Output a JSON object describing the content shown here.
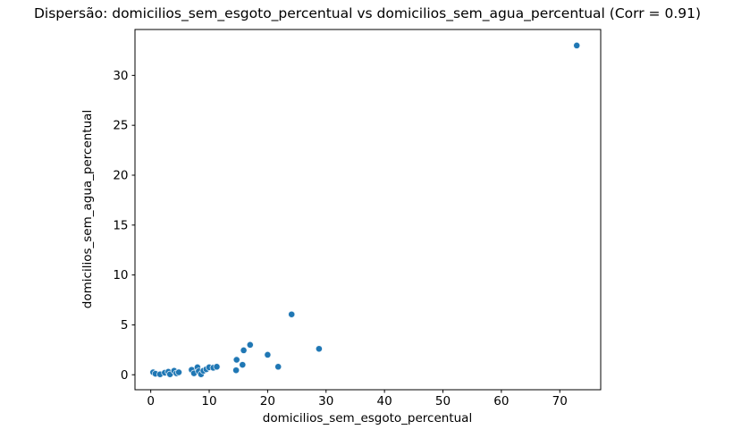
{
  "figure": {
    "background_color": "#ffffff",
    "text_color": "#000000",
    "frame_color": "#000000"
  },
  "chart_data": {
    "type": "scatter",
    "title": "Dispersão: domicilios_sem_esgoto_percentual vs domicilios_sem_agua_percentual (Corr = 0.91)",
    "xlabel": "domicilios_sem_esgoto_percentual",
    "ylabel": "domicilios_sem_agua_percentual",
    "correlation": 0.91,
    "marker_color": "#1f77b4",
    "marker_edge_color": "#e8f0f7",
    "grid": false,
    "legend_position": "none",
    "xlim": [
      -2.7,
      77.0
    ],
    "ylim": [
      -1.5,
      34.6
    ],
    "x_ticks": [
      0,
      10,
      20,
      30,
      40,
      50,
      60,
      70
    ],
    "y_ticks": [
      0,
      5,
      10,
      15,
      20,
      25,
      30
    ],
    "points": [
      [
        0.4,
        0.25
      ],
      [
        0.8,
        0.1
      ],
      [
        1.6,
        0.05
      ],
      [
        2.4,
        0.2
      ],
      [
        3.0,
        0.3
      ],
      [
        3.3,
        0.05
      ],
      [
        4.0,
        0.4
      ],
      [
        4.4,
        0.15
      ],
      [
        4.8,
        0.25
      ],
      [
        7.0,
        0.5
      ],
      [
        7.4,
        0.15
      ],
      [
        8.0,
        0.75
      ],
      [
        8.2,
        0.35
      ],
      [
        8.6,
        0.05
      ],
      [
        9.0,
        0.4
      ],
      [
        9.5,
        0.55
      ],
      [
        10.0,
        0.75
      ],
      [
        10.7,
        0.7
      ],
      [
        11.3,
        0.8
      ],
      [
        14.6,
        0.45
      ],
      [
        14.7,
        1.5
      ],
      [
        15.7,
        1.0
      ],
      [
        15.9,
        2.45
      ],
      [
        17.0,
        3.0
      ],
      [
        20.0,
        2.0
      ],
      [
        21.8,
        0.8
      ],
      [
        24.1,
        6.05
      ],
      [
        28.8,
        2.6
      ],
      [
        72.9,
        33.0
      ]
    ]
  }
}
